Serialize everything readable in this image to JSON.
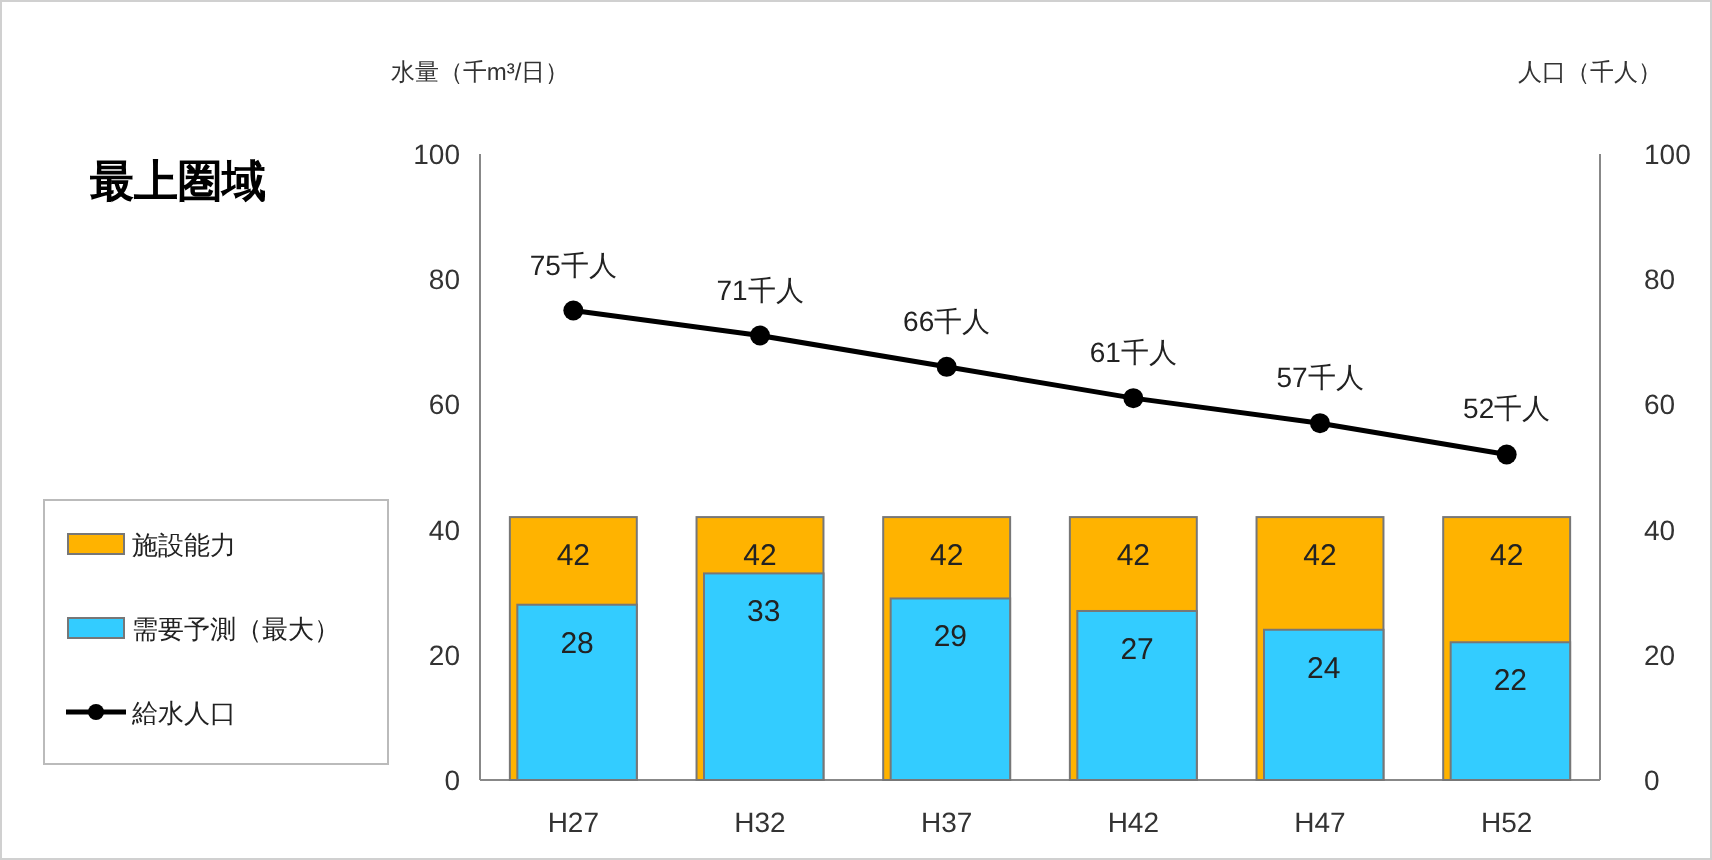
{
  "chart_data": {
    "type": "bar",
    "title": "最上圏域",
    "ylabel": "水量（千m³/日）",
    "y2label": "人口（千人）",
    "categories": [
      "H27",
      "H32",
      "H37",
      "H42",
      "H47",
      "H52"
    ],
    "series": [
      {
        "name": "施設能力",
        "color": "#ffb300",
        "values": [
          42,
          42,
          42,
          42,
          42,
          42
        ],
        "value_labels": [
          "42",
          "42",
          "42",
          "42",
          "42",
          "42"
        ]
      },
      {
        "name": "需要予測（最大）",
        "color": "#33ccff",
        "values": [
          28,
          33,
          29,
          27,
          24,
          22
        ],
        "value_labels": [
          "28",
          "33",
          "29",
          "27",
          "24",
          "22"
        ]
      },
      {
        "name": "給水人口",
        "type": "line",
        "axis": "y2",
        "color": "#000000",
        "marker": "circle",
        "values": [
          75,
          71,
          66,
          61,
          57,
          52
        ],
        "value_labels": [
          "75千人",
          "71千人",
          "66千人",
          "61千人",
          "57千人",
          "52千人"
        ]
      }
    ],
    "ylim": [
      0,
      100
    ],
    "yticks": [
      0,
      20,
      40,
      60,
      80,
      100
    ],
    "y2lim": [
      0,
      100
    ],
    "y2ticks": [
      0,
      20,
      40,
      60,
      80,
      100
    ],
    "grid": false,
    "legend": "left"
  }
}
